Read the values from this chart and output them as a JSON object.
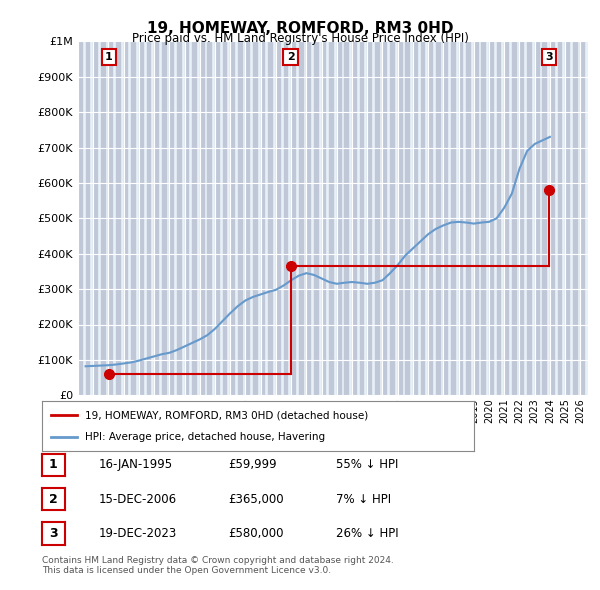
{
  "title": "19, HOMEWAY, ROMFORD, RM3 0HD",
  "subtitle": "Price paid vs. HM Land Registry's House Price Index (HPI)",
  "transactions": [
    {
      "date": "1995-01-16",
      "price": 59999,
      "label": "1"
    },
    {
      "date": "2006-12-15",
      "price": 365000,
      "label": "2"
    },
    {
      "date": "2023-12-19",
      "price": 580000,
      "label": "3"
    }
  ],
  "transaction_labels": [
    {
      "num": "1",
      "date": "16-JAN-1995",
      "price": "£59,999",
      "hpi": "55% ↓ HPI"
    },
    {
      "num": "2",
      "date": "15-DEC-2006",
      "price": "£365,000",
      "hpi": "7% ↓ HPI"
    },
    {
      "num": "3",
      "date": "19-DEC-2023",
      "price": "£580,000",
      "hpi": "26% ↓ HPI"
    }
  ],
  "hpi_line_color": "#6699cc",
  "price_line_color": "#cc0000",
  "marker_color": "#cc0000",
  "label_box_color": "#cc0000",
  "background_color": "#ffffff",
  "plot_bg_color": "#e8f0f8",
  "hatch_color": "#c0c8d8",
  "ylabel": "",
  "ylim": [
    0,
    1000000
  ],
  "yticks": [
    0,
    100000,
    200000,
    300000,
    400000,
    500000,
    600000,
    700000,
    800000,
    900000,
    1000000
  ],
  "xlim_start": 1993.0,
  "xlim_end": 2026.5,
  "legend_label_price": "19, HOMEWAY, ROMFORD, RM3 0HD (detached house)",
  "legend_label_hpi": "HPI: Average price, detached house, Havering",
  "footnote": "Contains HM Land Registry data © Crown copyright and database right 2024.\nThis data is licensed under the Open Government Licence v3.0.",
  "hpi_data_x": [
    1993.5,
    1994.0,
    1994.5,
    1995.0,
    1995.5,
    1996.0,
    1996.5,
    1997.0,
    1997.5,
    1998.0,
    1998.5,
    1999.0,
    1999.5,
    2000.0,
    2000.5,
    2001.0,
    2001.5,
    2002.0,
    2002.5,
    2003.0,
    2003.5,
    2004.0,
    2004.5,
    2005.0,
    2005.5,
    2006.0,
    2006.5,
    2007.0,
    2007.5,
    2008.0,
    2008.5,
    2009.0,
    2009.5,
    2010.0,
    2010.5,
    2011.0,
    2011.5,
    2012.0,
    2012.5,
    2013.0,
    2013.5,
    2014.0,
    2014.5,
    2015.0,
    2015.5,
    2016.0,
    2016.5,
    2017.0,
    2017.5,
    2018.0,
    2018.5,
    2019.0,
    2019.5,
    2020.0,
    2020.5,
    2021.0,
    2021.5,
    2022.0,
    2022.5,
    2023.0,
    2023.5,
    2024.0
  ],
  "hpi_data_y": [
    82000,
    83000,
    84000,
    85000,
    87000,
    90000,
    93000,
    98000,
    104000,
    110000,
    116000,
    120000,
    128000,
    138000,
    148000,
    158000,
    170000,
    188000,
    210000,
    232000,
    252000,
    268000,
    278000,
    285000,
    292000,
    298000,
    310000,
    325000,
    338000,
    345000,
    340000,
    330000,
    320000,
    315000,
    318000,
    320000,
    318000,
    315000,
    318000,
    325000,
    345000,
    368000,
    395000,
    415000,
    435000,
    455000,
    470000,
    480000,
    488000,
    490000,
    488000,
    485000,
    488000,
    490000,
    500000,
    530000,
    570000,
    640000,
    690000,
    710000,
    720000,
    730000
  ],
  "price_data_x": [
    1995.04,
    2006.96,
    2023.96
  ],
  "price_data_y": [
    59999,
    365000,
    580000
  ]
}
